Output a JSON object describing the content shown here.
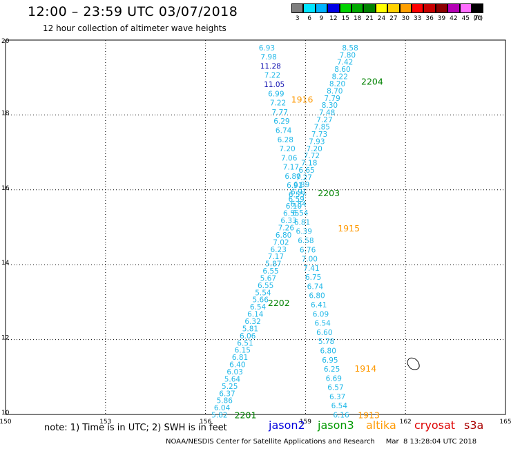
{
  "header": {
    "title": "12:00 – 23:59 UTC 03/07/2018",
    "subtitle": "12 hour collection of altimeter wave heights"
  },
  "color_scale": {
    "unit_label": "(ft)",
    "bins": [
      {
        "label": "3",
        "color": "#7f7f7f"
      },
      {
        "label": "6",
        "color": "#00e5ff"
      },
      {
        "label": "9",
        "color": "#00b4ff"
      },
      {
        "label": "12",
        "color": "#0000e6"
      },
      {
        "label": "15",
        "color": "#00d200"
      },
      {
        "label": "18",
        "color": "#00aa00"
      },
      {
        "label": "21",
        "color": "#008200"
      },
      {
        "label": "24",
        "color": "#ffff00"
      },
      {
        "label": "27",
        "color": "#ffd200"
      },
      {
        "label": "30",
        "color": "#ffa000"
      },
      {
        "label": "33",
        "color": "#ff0000"
      },
      {
        "label": "36",
        "color": "#c80000"
      },
      {
        "label": "39",
        "color": "#8c0000"
      },
      {
        "label": "42",
        "color": "#b400b4"
      },
      {
        "label": "45",
        "color": "#ff6eff"
      },
      {
        "label": "70",
        "color": "#000000"
      }
    ]
  },
  "axes": {
    "lon_ticks": [
      "150",
      "153",
      "156",
      "159",
      "162",
      "165"
    ],
    "lat_ticks": [
      "10",
      "12",
      "14",
      "16",
      "18",
      "20"
    ],
    "lon_range": [
      150,
      165
    ],
    "lat_range": [
      10,
      20
    ]
  },
  "chart_data": {
    "type": "scatter",
    "point_color": "#22b8e8",
    "high_value_color": "#1010b0",
    "labels": [
      {
        "text": "2201",
        "lon": 157.2,
        "lat": 9.97,
        "color": "#008200"
      },
      {
        "text": "2202",
        "lon": 158.2,
        "lat": 12.97,
        "color": "#008200"
      },
      {
        "text": "2203",
        "lon": 159.7,
        "lat": 15.9,
        "color": "#008200"
      },
      {
        "text": "2204",
        "lon": 161.0,
        "lat": 18.88,
        "color": "#008200"
      },
      {
        "text": "1913",
        "lon": 160.9,
        "lat": 9.97,
        "color": "#ff9900"
      },
      {
        "text": "1914",
        "lon": 160.8,
        "lat": 11.22,
        "color": "#ff9900"
      },
      {
        "text": "1915",
        "lon": 160.3,
        "lat": 14.96,
        "color": "#ff9900"
      },
      {
        "text": "1916",
        "lon": 158.9,
        "lat": 18.4,
        "color": "#ff9900"
      }
    ],
    "tracks": [
      {
        "name": "2201",
        "start": [
          156.42,
          9.99
        ],
        "end": [
          160.34,
          19.8
        ],
        "values": [
          "5.82",
          "6.04",
          "5.86",
          "6.37",
          "5.25",
          "5.64",
          "6.03",
          "6.40",
          "6.81",
          "6.15",
          "6.51",
          "6.06",
          "5.81",
          "6.32",
          "6.14",
          "6.54",
          "5.66",
          "5.54",
          "6.55",
          "5.67",
          "6.55",
          "5.87",
          "7.17",
          "6.23",
          "7.02",
          "6.80",
          "7.26",
          "6.33",
          "6.55",
          "6.10",
          "6.59",
          "6.91",
          "6.89",
          "7.27",
          "6.65",
          "7.18",
          "7.72",
          "7.20",
          "7.93",
          "7.73",
          "7.85",
          "7.27",
          "7.48",
          "8.30",
          "7.79",
          "8.70",
          "8.20",
          "8.22",
          "8.60",
          "7.42",
          "7.80",
          "8.58"
        ]
      },
      {
        "name": "1913",
        "start": [
          160.07,
          9.99
        ],
        "end": [
          157.84,
          19.8
        ],
        "values": [
          "6.16",
          "6.54",
          "6.37",
          "6.57",
          "6.69",
          "6.25",
          "6.95",
          "6.80",
          "5.78",
          "6.60",
          "6.54",
          "6.09",
          "6.41",
          "6.80",
          "6.74",
          "6.75",
          "7.41",
          "7.00",
          "6.76",
          "6.58",
          "6.39",
          "6.81",
          "6.54",
          "6.84",
          "6.55",
          "6.91",
          "6.80",
          "7.17",
          "7.06",
          "7.20",
          "6.28",
          "6.74",
          "6.29",
          "7.77",
          "7.22",
          "6.99",
          "11.05",
          "7.22",
          "11.28",
          "7.98",
          "6.93"
        ]
      }
    ]
  },
  "note": {
    "text": "note:  1) Time is in UTC;  2) SWH is in feet"
  },
  "satellites": [
    {
      "name": "jason2",
      "color": "#0000dd"
    },
    {
      "name": "jason3",
      "color": "#009900"
    },
    {
      "name": "altika",
      "color": "#ff9900"
    },
    {
      "name": "cryosat",
      "color": "#dd0000"
    },
    {
      "name": "s3a",
      "color": "#aa0000"
    }
  ],
  "footer": {
    "credit": "NOAA/NESDIS Center for Satellite Applications and Research",
    "timestamp": "Mar  8 13:28:04 UTC 2018"
  }
}
